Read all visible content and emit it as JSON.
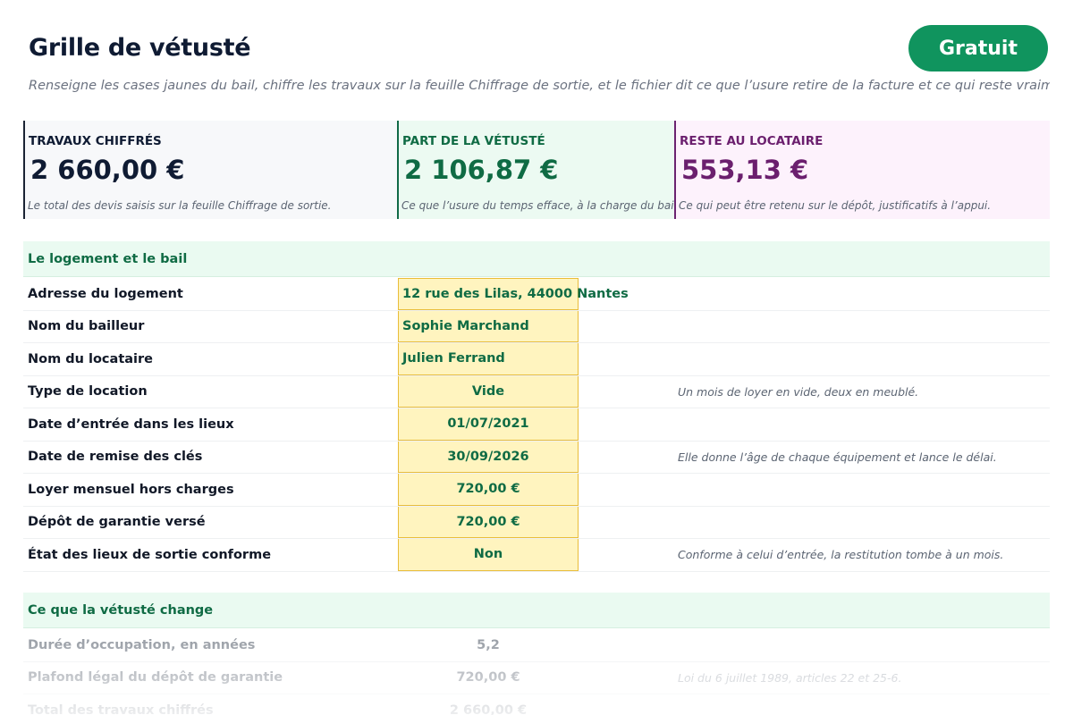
{
  "header": {
    "title": "Grille de vétusté",
    "badge": "Gratuit",
    "subtitle": "Renseigne les cases jaunes du bail, chiffre les travaux sur la feuille Chiffrage de sortie, et le fichier dit ce que l’usure retire de la facture et ce qui reste vraiment à la charge du locataire."
  },
  "kpis": [
    {
      "label": "TRAVAUX CHIFFRÉS",
      "value": "2 660,00 €",
      "note": "Le total des devis saisis sur la feuille Chiffrage de sortie."
    },
    {
      "label": "PART DE LA VÉTUSTÉ",
      "value": "2 106,87 €",
      "note": "Ce que l’usure du temps efface, à la charge du bailleur."
    },
    {
      "label": "RESTE AU LOCATAIRE",
      "value": "553,13 €",
      "note": "Ce qui peut être retenu sur le dépôt, justificatifs à l’appui."
    }
  ],
  "bail": {
    "heading": "Le logement et le bail",
    "rows": [
      {
        "label": "Adresse du logement",
        "value": "12 rue des Lilas, 44000 Nantes",
        "hint": ""
      },
      {
        "label": "Nom du bailleur",
        "value": "Sophie Marchand",
        "hint": ""
      },
      {
        "label": "Nom du locataire",
        "value": "Julien Ferrand",
        "hint": ""
      },
      {
        "label": "Type de location",
        "value": "Vide",
        "hint": "Un mois de loyer en vide, deux en meublé."
      },
      {
        "label": "Date d’entrée dans les lieux",
        "value": "01/07/2021",
        "hint": ""
      },
      {
        "label": "Date de remise des clés",
        "value": "30/09/2026",
        "hint": "Elle donne l’âge de chaque équipement et lance le délai."
      },
      {
        "label": "Loyer mensuel hors charges",
        "value": "720,00 €",
        "hint": ""
      },
      {
        "label": "Dépôt de garantie versé",
        "value": "720,00 €",
        "hint": ""
      },
      {
        "label": "État des lieux de sortie conforme",
        "value": "Non",
        "hint": "Conforme à celui d’entrée, la restitution tombe à un mois."
      }
    ]
  },
  "vetuste": {
    "heading": "Ce que la vétusté change",
    "rows": [
      {
        "label": "Durée d’occupation, en années",
        "value": "5,2",
        "hint": ""
      },
      {
        "label": "Plafond légal du dépôt de garantie",
        "value": "720,00 €",
        "hint": "Loi du 6 juillet 1989, articles 22 et 25-6."
      },
      {
        "label": "Total des travaux chiffrés",
        "value": "2 660,00 €",
        "hint": ""
      }
    ]
  }
}
